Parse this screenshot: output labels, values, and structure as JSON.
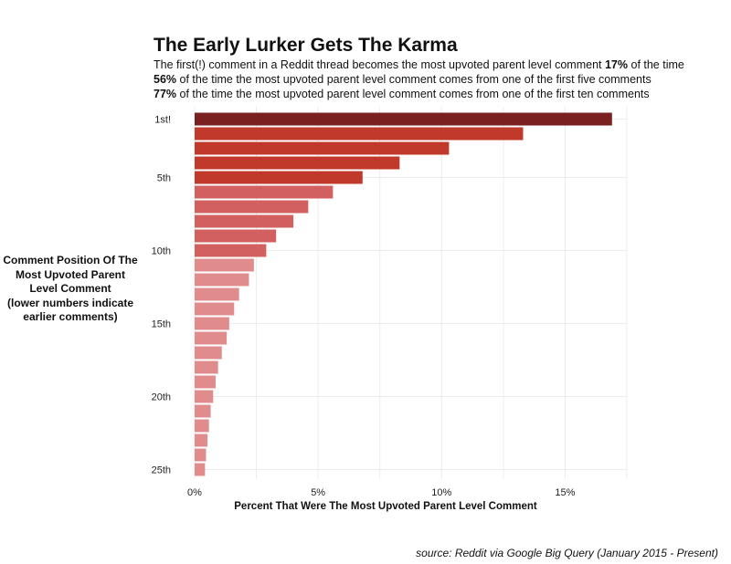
{
  "chart_data": {
    "type": "bar",
    "orientation": "horizontal",
    "title": "The Early Lurker Gets The Karma",
    "subtitle_lines": [
      {
        "pre": "The first(!) comment in a Reddit thread becomes the most upvoted parent level comment ",
        "bold": "17%",
        "post": " of the time"
      },
      {
        "pre": "",
        "bold": "56%",
        "post": " of the time the most upvoted parent level comment comes from one of the first five comments"
      },
      {
        "pre": "",
        "bold": "77%",
        "post": " of the time the most upvoted parent level comment comes from one of the first ten comments"
      }
    ],
    "ylabel": "Comment Position Of The Most Upvoted Parent Level Comment (lower numbers indicate earlier comments)",
    "ylabel_lines": [
      "Comment Position Of The",
      "Most Upvoted Parent",
      "Level Comment",
      "(lower numbers indicate",
      "earlier comments)"
    ],
    "xlabel": "Percent That Were The Most Upvoted Parent Level Comment",
    "source": "source: Reddit via Google Big Query (January 2015 - Present)",
    "xlim": [
      0,
      17.5
    ],
    "x_ticks": [
      0,
      5,
      10,
      15
    ],
    "x_tick_labels": [
      "0%",
      "5%",
      "10%",
      "15%"
    ],
    "positions": [
      1,
      2,
      3,
      4,
      5,
      6,
      7,
      8,
      9,
      10,
      11,
      12,
      13,
      14,
      15,
      16,
      17,
      18,
      19,
      20,
      21,
      22,
      23,
      24,
      25
    ],
    "y_tick_positions": [
      1,
      5,
      10,
      15,
      20,
      25
    ],
    "y_tick_labels": [
      "1st!",
      "5th",
      "10th",
      "15th",
      "20th",
      "25th"
    ],
    "values": [
      16.9,
      13.3,
      10.3,
      8.3,
      6.8,
      5.6,
      4.6,
      4.0,
      3.3,
      2.9,
      2.4,
      2.2,
      1.8,
      1.6,
      1.4,
      1.3,
      1.1,
      0.95,
      0.85,
      0.75,
      0.65,
      0.58,
      0.52,
      0.46,
      0.42
    ],
    "colors": {
      "top": "#7a2020",
      "group_2_5": "#c0392b",
      "group_6_10": "#d26060",
      "group_11_25": "#e08c8c",
      "grid": "#ececec",
      "background": "#ffffff"
    },
    "grid": true
  }
}
